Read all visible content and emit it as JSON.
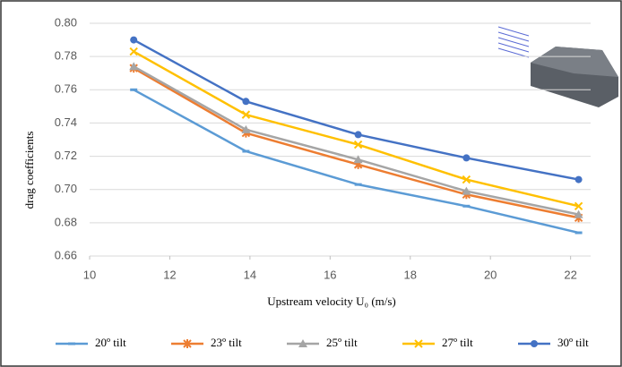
{
  "chart_data": {
    "type": "line",
    "x_label": "Upstream velocity U₀ (m/s)",
    "y_label": "drag coefficients",
    "xlim": [
      10,
      22.5
    ],
    "xticks": [
      10,
      12,
      14,
      16,
      18,
      20,
      22
    ],
    "ylim": [
      0.66,
      0.8
    ],
    "yticks": [
      0.66,
      0.68,
      {
        "value": 0.7,
        "label": "0.70"
      },
      0.72,
      0.74,
      0.76,
      0.78,
      {
        "value": 0.8,
        "label": "0.80"
      }
    ],
    "grid": true,
    "legend": "bottom",
    "x": [
      11.1,
      13.9,
      16.7,
      19.4,
      22.2
    ],
    "series": [
      {
        "name": "20º tilt",
        "color": "#5b9bd5",
        "marker": "dash",
        "values": [
          0.76,
          0.723,
          0.703,
          0.69,
          0.674
        ]
      },
      {
        "name": "23º tilt",
        "color": "#ed7d31",
        "marker": "star",
        "values": [
          0.773,
          0.734,
          0.715,
          0.697,
          0.683
        ]
      },
      {
        "name": "25º tilt",
        "color": "#a5a5a5",
        "marker": "triangle",
        "values": [
          0.774,
          0.736,
          0.718,
          0.699,
          0.685
        ]
      },
      {
        "name": "27º tilt",
        "color": "#ffc000",
        "marker": "cross",
        "values": [
          0.783,
          0.745,
          0.727,
          0.706,
          0.69
        ]
      },
      {
        "name": "30º tilt",
        "color": "#4472c4",
        "marker": "circle",
        "values": [
          0.79,
          0.753,
          0.733,
          0.719,
          0.706
        ]
      }
    ]
  }
}
